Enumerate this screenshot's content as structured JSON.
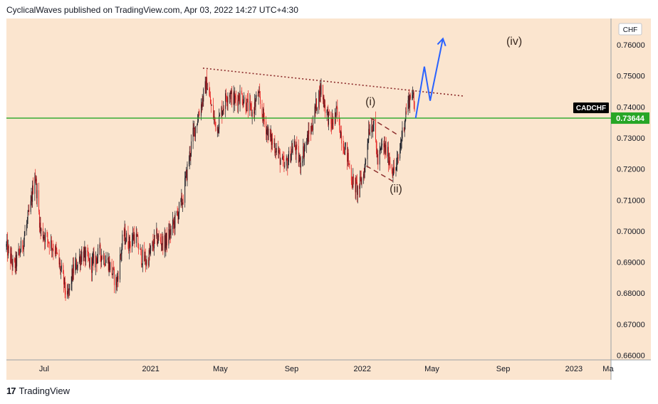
{
  "header": {
    "published_text": "CyclicalWaves published on TradingView.com, Apr 03, 2022 14:27 UTC+4:30"
  },
  "footer": {
    "brand_mark": "17",
    "brand_name": "TradingView"
  },
  "colors": {
    "plot_bg": "#fbe5cf",
    "up_candle": "#131722",
    "down_candle": "#e61e1e",
    "support_line": "#26a626",
    "trend_line": "#8b2a2a",
    "projection": "#2962ff",
    "price_badge": "#26a626",
    "symbol_badge": "#000000"
  },
  "chart_data": {
    "type": "candlestick",
    "symbol": "CADCHF",
    "currency": "CHF",
    "last_price": "0.73644",
    "ylim": [
      0.6585,
      0.7685
    ],
    "y_ticks": [
      "0.76000",
      "0.75000",
      "0.74000",
      "0.73000",
      "0.72000",
      "0.71000",
      "0.70000",
      "0.69000",
      "0.68000",
      "0.67000",
      "0.66000"
    ],
    "x_range": [
      "2020-04-27",
      "2023-03-06"
    ],
    "x_ticks": [
      {
        "label": "Jul",
        "date": "2020-07-01"
      },
      {
        "label": "2021",
        "date": "2021-01-01"
      },
      {
        "label": "May",
        "date": "2021-05-01"
      },
      {
        "label": "Sep",
        "date": "2021-09-01"
      },
      {
        "label": "2022",
        "date": "2022-01-01"
      },
      {
        "label": "May",
        "date": "2022-05-01"
      },
      {
        "label": "Sep",
        "date": "2022-09-01"
      },
      {
        "label": "2023",
        "date": "2023-01-01"
      },
      {
        "label": "Ma",
        "date": "2023-03-01"
      }
    ],
    "price_path": [
      [
        "2020-04-27",
        0.695
      ],
      [
        "2020-05-10",
        0.688
      ],
      [
        "2020-05-25",
        0.696
      ],
      [
        "2020-06-08",
        0.708
      ],
      [
        "2020-06-15",
        0.719
      ],
      [
        "2020-06-25",
        0.7
      ],
      [
        "2020-07-05",
        0.698
      ],
      [
        "2020-07-20",
        0.694
      ],
      [
        "2020-08-01",
        0.686
      ],
      [
        "2020-08-10",
        0.678
      ],
      [
        "2020-08-20",
        0.687
      ],
      [
        "2020-09-05",
        0.693
      ],
      [
        "2020-09-20",
        0.689
      ],
      [
        "2020-10-05",
        0.693
      ],
      [
        "2020-10-20",
        0.69
      ],
      [
        "2020-11-03",
        0.683
      ],
      [
        "2020-11-15",
        0.699
      ],
      [
        "2020-11-25",
        0.696
      ],
      [
        "2020-12-05",
        0.699
      ],
      [
        "2020-12-15",
        0.692
      ],
      [
        "2020-12-25",
        0.69
      ],
      [
        "2021-01-10",
        0.698
      ],
      [
        "2021-01-25",
        0.696
      ],
      [
        "2021-02-05",
        0.7
      ],
      [
        "2021-02-15",
        0.705
      ],
      [
        "2021-02-25",
        0.71
      ],
      [
        "2021-03-05",
        0.72
      ],
      [
        "2021-03-15",
        0.731
      ],
      [
        "2021-03-25",
        0.738
      ],
      [
        "2021-04-01",
        0.743
      ],
      [
        "2021-04-08",
        0.748
      ],
      [
        "2021-04-15",
        0.74
      ],
      [
        "2021-04-25",
        0.733
      ],
      [
        "2021-05-05",
        0.74
      ],
      [
        "2021-05-15",
        0.745
      ],
      [
        "2021-05-25",
        0.742
      ],
      [
        "2021-06-05",
        0.744
      ],
      [
        "2021-06-15",
        0.741
      ],
      [
        "2021-06-25",
        0.738
      ],
      [
        "2021-07-05",
        0.744
      ],
      [
        "2021-07-15",
        0.736
      ],
      [
        "2021-07-25",
        0.73
      ],
      [
        "2021-08-05",
        0.727
      ],
      [
        "2021-08-15",
        0.722
      ],
      [
        "2021-08-20",
        0.72
      ],
      [
        "2021-08-28",
        0.724
      ],
      [
        "2021-09-05",
        0.728
      ],
      [
        "2021-09-15",
        0.722
      ],
      [
        "2021-09-25",
        0.728
      ],
      [
        "2021-10-05",
        0.733
      ],
      [
        "2021-10-15",
        0.742
      ],
      [
        "2021-10-22",
        0.746
      ],
      [
        "2021-10-29",
        0.74
      ],
      [
        "2021-11-08",
        0.734
      ],
      [
        "2021-11-18",
        0.738
      ],
      [
        "2021-11-28",
        0.729
      ],
      [
        "2021-12-05",
        0.725
      ],
      [
        "2021-12-15",
        0.716
      ],
      [
        "2021-12-25",
        0.713
      ],
      [
        "2022-01-05",
        0.72
      ],
      [
        "2022-01-12",
        0.733
      ],
      [
        "2022-01-20",
        0.735
      ],
      [
        "2022-01-28",
        0.722
      ],
      [
        "2022-02-05",
        0.728
      ],
      [
        "2022-02-15",
        0.724
      ],
      [
        "2022-02-24",
        0.719
      ],
      [
        "2022-03-03",
        0.722
      ],
      [
        "2022-03-12",
        0.733
      ],
      [
        "2022-03-20",
        0.741
      ],
      [
        "2022-03-28",
        0.745
      ],
      [
        "2022-04-03",
        0.7364
      ]
    ],
    "support_level": 0.7364,
    "trend_line": {
      "from": [
        "2021-04-01",
        0.7525
      ],
      "to": [
        "2022-06-25",
        0.7435
      ]
    },
    "wave_labels": [
      {
        "label": "(i)",
        "date": "2022-01-15",
        "price": 0.7405
      },
      {
        "label": "(ii)",
        "date": "2022-02-28",
        "price": 0.7125
      },
      {
        "label": "(iv)",
        "date": "2022-09-20",
        "price": 0.76
      }
    ],
    "channel_lines": [
      {
        "from": [
          "2022-01-15",
          0.7365
        ],
        "to": [
          "2022-03-03",
          0.731
        ]
      },
      {
        "from": [
          "2022-01-08",
          0.721
        ],
        "to": [
          "2022-02-28",
          0.7155
        ]
      }
    ],
    "projection_path": [
      [
        "2022-04-03",
        0.7364
      ],
      [
        "2022-04-18",
        0.753
      ],
      [
        "2022-04-28",
        0.742
      ],
      [
        "2022-05-20",
        0.762
      ]
    ]
  }
}
